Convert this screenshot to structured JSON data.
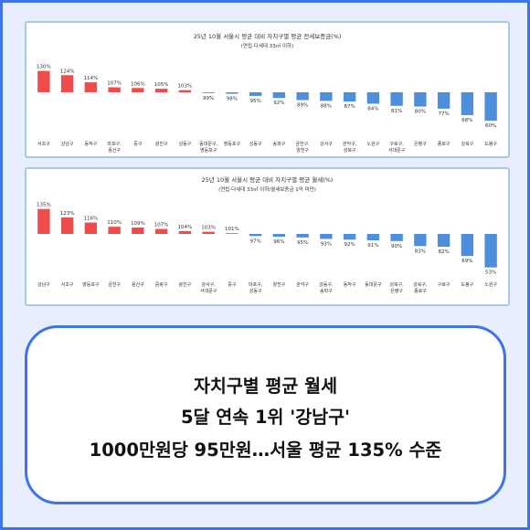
{
  "chart_data": [
    {
      "type": "bar",
      "title": "25년 10월 서울시 평균 대비 자치구별 평균 전세보증금(%)",
      "subtitle": "(연립·다세대 33㎡ 이하)",
      "baseline": 100,
      "categories": [
        "서초구",
        "강남구",
        "동작구",
        "마포구, 용산구",
        "중구",
        "광진구",
        "성동구",
        "동대문구, 영등포구",
        "영등포구",
        "성동구",
        "송파구",
        "금천구, 양천구",
        "강서구",
        "관악구, 성북구",
        "노원구",
        "구로구, 서대문구",
        "은평구",
        "종로구",
        "강북구",
        "도봉구"
      ],
      "value_labels": [
        "130%",
        "124%",
        "114%",
        "107%",
        "106%",
        "105%",
        "103%",
        "99%",
        "98%",
        "95%",
        "92%",
        "89%",
        "88%",
        "87%",
        "84%",
        "81%",
        "80%",
        "77%",
        "68%",
        "60%"
      ],
      "values": [
        130,
        124,
        114,
        107,
        106,
        105,
        103,
        99,
        98,
        95,
        92,
        89,
        88,
        87,
        84,
        81,
        80,
        77,
        68,
        60
      ],
      "colors": {
        "above": "#f04a4a",
        "below": "#4d8fdc"
      }
    },
    {
      "type": "bar",
      "title": "25년 10월 서울시 평균 대비 자치구별 평균 월세(%)",
      "subtitle": "(연립·다세대 33㎡ 이하/월세보증금 1억 미만)",
      "baseline": 100,
      "categories": [
        "강남구",
        "서초구",
        "영등포구",
        "금천구",
        "용산구",
        "중랑구",
        "광진구",
        "강서구, 서대문구",
        "중구",
        "마포구, 성동구",
        "양천구",
        "관악구",
        "강동구, 송파구",
        "동작구",
        "동대문구",
        "성북구, 은평구",
        "강북구, 종로구",
        "구로구",
        "도봉구",
        "노원구"
      ],
      "value_labels": [
        "135%",
        "123%",
        "116%",
        "110%",
        "109%",
        "107%",
        "104%",
        "103%",
        "101%",
        "97%",
        "96%",
        "95%",
        "93%",
        "92%",
        "91%",
        "90%",
        "83%",
        "82%",
        "69%",
        "53%"
      ],
      "values": [
        135,
        123,
        116,
        110,
        109,
        107,
        104,
        103,
        101,
        97,
        96,
        95,
        93,
        92,
        91,
        90,
        83,
        82,
        69,
        53
      ],
      "colors": {
        "above": "#f04a4a",
        "below": "#4d8fdc"
      }
    }
  ],
  "caption": {
    "line1": "자치구별 평균 월세",
    "line2": "5달 연속 1위 '강남구'",
    "line3": "1000만원당 95만원…서울 평균 135% 수준"
  }
}
